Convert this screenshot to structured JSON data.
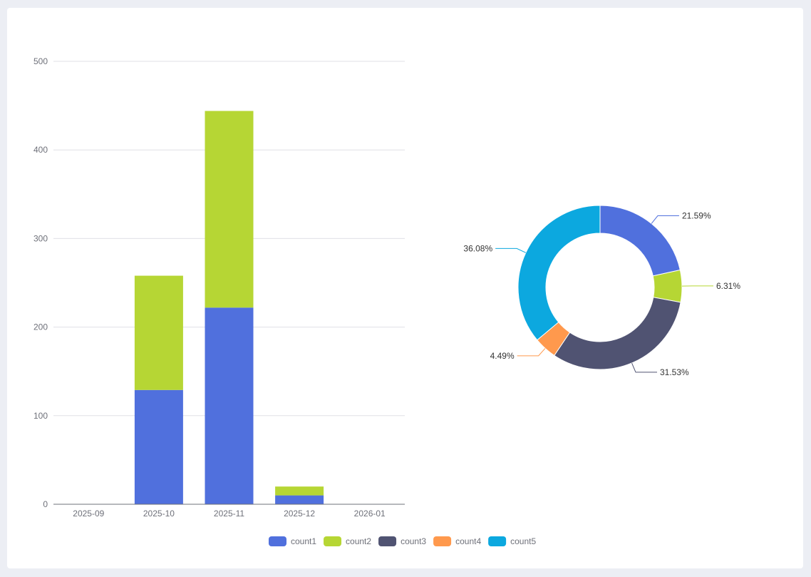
{
  "chart_data": [
    {
      "type": "bar",
      "stacked": true,
      "categories": [
        "2025-09",
        "2025-10",
        "2025-11",
        "2025-12",
        "2026-01"
      ],
      "series": [
        {
          "name": "count1",
          "color": "#5070dd",
          "values": [
            0,
            129,
            222,
            10,
            0
          ]
        },
        {
          "name": "count2",
          "color": "#b6d634",
          "values": [
            0,
            129,
            222,
            10,
            0
          ]
        }
      ],
      "ylim": [
        0,
        500
      ],
      "yticks": [
        "0",
        "100",
        "200",
        "300",
        "400",
        "500"
      ],
      "grid": true
    },
    {
      "type": "pie",
      "donut": true,
      "slices": [
        {
          "name": "count1",
          "color": "#5070dd",
          "percent": 21.59,
          "label": "21.59%"
        },
        {
          "name": "count2",
          "color": "#b6d634",
          "percent": 6.31,
          "label": "6.31%"
        },
        {
          "name": "count3",
          "color": "#505372",
          "percent": 31.53,
          "label": "31.53%"
        },
        {
          "name": "count4",
          "color": "#ff994d",
          "percent": 4.49,
          "label": "4.49%"
        },
        {
          "name": "count5",
          "color": "#0ca8df",
          "percent": 36.08,
          "label": "36.08%"
        }
      ]
    }
  ],
  "legend": {
    "placement": "bottom-center",
    "items": [
      {
        "name": "count1",
        "color": "#5070dd"
      },
      {
        "name": "count2",
        "color": "#b6d634"
      },
      {
        "name": "count3",
        "color": "#505372"
      },
      {
        "name": "count4",
        "color": "#ff994d"
      },
      {
        "name": "count5",
        "color": "#0ca8df"
      }
    ]
  }
}
